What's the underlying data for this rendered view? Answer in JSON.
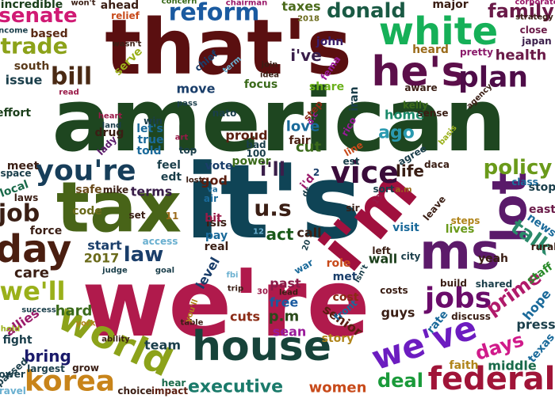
{
  "words": [
    {
      "text": "american",
      "color": "#1e4620"
    },
    {
      "text": "that's",
      "color": "#5a0f10"
    },
    {
      "text": "we're",
      "color": "#b01a4c"
    },
    {
      "text": "it's",
      "color": "#0f4456"
    },
    {
      "text": "house",
      "color": "#17433a"
    },
    {
      "text": "tax",
      "color": "#486418"
    },
    {
      "text": "i'm",
      "color": "#a0103e"
    },
    {
      "text": "white",
      "color": "#16b058"
    },
    {
      "text": "he's",
      "color": "#5c0f4a"
    },
    {
      "text": "ms",
      "color": "#5c1a6a"
    },
    {
      "text": "lot",
      "color": "#5a1a6a"
    },
    {
      "text": "world",
      "color": "#8ca21a"
    },
    {
      "text": "korea",
      "color": "#c8841a"
    },
    {
      "text": "federal",
      "color": "#a01438"
    },
    {
      "text": "we've",
      "color": "#6c1cc0"
    },
    {
      "text": "day",
      "color": "#4a1e10"
    },
    {
      "text": "you're",
      "color": "#173e5a"
    },
    {
      "text": "vice",
      "color": "#3a0c3a"
    },
    {
      "text": "plan",
      "color": "#4e0c48"
    },
    {
      "text": "reform",
      "color": "#1a5aa0"
    },
    {
      "text": "donald",
      "color": "#1a5a44"
    },
    {
      "text": "jobs",
      "color": "#6a0c6a"
    },
    {
      "text": "senate",
      "color": "#d01a74"
    },
    {
      "text": "family",
      "color": "#6a1a48"
    },
    {
      "text": "trade",
      "color": "#8ca21a"
    },
    {
      "text": "bill",
      "color": "#4a2a14"
    },
    {
      "text": "job",
      "color": "#3a1e14"
    },
    {
      "text": "law",
      "color": "#1a3e6a"
    },
    {
      "text": "policy",
      "color": "#6a9a1a"
    },
    {
      "text": "talk",
      "color": "#2a8a6a"
    },
    {
      "text": "prime",
      "color": "#b01a6a"
    },
    {
      "text": "executive",
      "color": "#1a7a6a"
    },
    {
      "text": "deal",
      "color": "#1a9a3a"
    },
    {
      "text": "women",
      "color": "#c84a1a"
    },
    {
      "text": "health",
      "color": "#6a1a48"
    },
    {
      "text": "u.s",
      "color": "#3a1e14"
    },
    {
      "text": "we'll",
      "color": "#9ab01a"
    },
    {
      "text": "bring",
      "color": "#1a1a6a"
    },
    {
      "text": "days",
      "color": "#d01a8a"
    },
    {
      "text": "team",
      "color": "#1a3e4a"
    },
    {
      "text": "life",
      "color": "#3a1e14"
    },
    {
      "text": "ago",
      "color": "#2a9ab0"
    },
    {
      "text": "home",
      "color": "#1a8a6a"
    },
    {
      "text": "act",
      "color": "#1a5a1a"
    },
    {
      "text": "hard",
      "color": "#3a6a1a"
    },
    {
      "text": "care",
      "color": "#3a1e14"
    },
    {
      "text": "i'll",
      "color": "#3a1e4a"
    },
    {
      "text": "i've",
      "color": "#3a1e4a"
    },
    {
      "text": "god",
      "color": "#5a1e10"
    },
    {
      "text": "terms",
      "color": "#3a1e4a"
    },
    {
      "text": "issue",
      "color": "#1a3e4a"
    },
    {
      "text": "incredible",
      "color": "#1a3e1a"
    },
    {
      "text": "based",
      "color": "#5a2a14"
    },
    {
      "text": "ahead",
      "color": "#3a1e14"
    },
    {
      "text": "taxes",
      "color": "#4a6a1a"
    },
    {
      "text": "major",
      "color": "#3a1e14"
    },
    {
      "text": "heard",
      "color": "#9a6a1a"
    },
    {
      "text": "south",
      "color": "#5a3a1a"
    },
    {
      "text": "close",
      "color": "#6a1a48"
    },
    {
      "text": "japan",
      "color": "#3a1e4a"
    },
    {
      "text": "pretty",
      "color": "#8a1a6a"
    },
    {
      "text": "move",
      "color": "#1a3e6a"
    },
    {
      "text": "focus",
      "color": "#3a6a1a"
    },
    {
      "text": "love",
      "color": "#1a6a9a"
    },
    {
      "text": "cut",
      "color": "#3a6a1a"
    },
    {
      "text": "fair",
      "color": "#4a1e10"
    },
    {
      "text": "proud",
      "color": "#5a1e10"
    },
    {
      "text": "meet",
      "color": "#3a1e14"
    },
    {
      "text": "local",
      "color": "#1a6a4a"
    },
    {
      "text": "safe",
      "color": "#6a4a1a"
    },
    {
      "text": "vote",
      "color": "#1a3e6a"
    },
    {
      "text": "2017",
      "color": "#6a6a1a"
    },
    {
      "text": "start",
      "color": "#1a3e6a"
    },
    {
      "text": "call",
      "color": "#3a1e14"
    },
    {
      "text": "isis",
      "color": "#3a1e14"
    },
    {
      "text": "pay",
      "color": "#1a6a9a"
    },
    {
      "text": "real",
      "color": "#3a1e14"
    },
    {
      "text": "level",
      "color": "#1a3e6a"
    },
    {
      "text": "past",
      "color": "#8a1a48"
    },
    {
      "text": "free",
      "color": "#1a5aa0"
    },
    {
      "text": "p.m",
      "color": "#2a4a1a"
    },
    {
      "text": "sean",
      "color": "#9a1a9a"
    },
    {
      "text": "cuts",
      "color": "#8a2a14"
    },
    {
      "text": "cost",
      "color": "#8a2a14"
    },
    {
      "text": "met",
      "color": "#1a3e6a"
    },
    {
      "text": "visit",
      "color": "#1a6a9a"
    },
    {
      "text": "wall",
      "color": "#1a3e1a"
    },
    {
      "text": "guys",
      "color": "#3a1e14"
    },
    {
      "text": "senior",
      "color": "#5a1e10"
    },
    {
      "text": "rate",
      "color": "#1a6a9a"
    },
    {
      "text": "hope",
      "color": "#1a6a9a"
    },
    {
      "text": "press",
      "color": "#1a3e4a"
    },
    {
      "text": "middle",
      "color": "#1a6a4a"
    },
    {
      "text": "news",
      "color": "#1a6a9a"
    },
    {
      "text": "lives",
      "color": "#6a9a1a"
    },
    {
      "text": "yeah",
      "color": "#3a1e14"
    },
    {
      "text": "build",
      "color": "#3a1e14"
    },
    {
      "text": "staff",
      "color": "#2a8a2a"
    },
    {
      "text": "fight",
      "color": "#1a3e4a"
    },
    {
      "text": "allies",
      "color": "#9a1a6a"
    },
    {
      "text": "force",
      "color": "#3a1e14"
    },
    {
      "text": "code",
      "color": "#6a6a1a"
    },
    {
      "text": "drug",
      "color": "#3a1e14"
    },
    {
      "text": "told",
      "color": "#1a6a9a"
    },
    {
      "text": "true",
      "color": "#1a6a9a"
    },
    {
      "text": "role",
      "color": "#c84a1a"
    },
    {
      "text": "story",
      "color": "#b0841a"
    },
    {
      "text": "faith",
      "color": "#b0841a"
    },
    {
      "text": "east",
      "color": "#6a1a48"
    },
    {
      "text": "stop",
      "color": "#1a3e4a"
    },
    {
      "text": "texas",
      "color": "#1a6a9a"
    },
    {
      "text": "share",
      "color": "#6ab01a"
    },
    {
      "text": "iran",
      "color": "#1a3e4a"
    },
    {
      "text": "john",
      "color": "#3a1e6a"
    },
    {
      "text": "serve",
      "color": "#9ab01a"
    },
    {
      "text": "fema",
      "color": "#9a1a9a"
    },
    {
      "text": "chief",
      "color": "#1a3e6a"
    },
    {
      "text": "relief",
      "color": "#c84a1a"
    },
    {
      "text": "step",
      "color": "#8a2a14"
    },
    {
      "text": "travel",
      "color": "#6ab0d0"
    },
    {
      "text": "grow",
      "color": "#3a1e14"
    },
    {
      "text": "largest",
      "color": "#1a3e4a"
    },
    {
      "text": "lower",
      "color": "#1a3e4a"
    },
    {
      "text": "passed",
      "color": "#1a3e4a"
    },
    {
      "text": "choice",
      "color": "#3a1e14"
    },
    {
      "text": "hear",
      "color": "#1a6a4a"
    },
    {
      "text": "impact",
      "color": "#5a1e10"
    },
    {
      "text": "costs",
      "color": "#3a1e14"
    },
    {
      "text": "discuss",
      "color": "#3a1e14"
    },
    {
      "text": "front",
      "color": "#1a6a9a"
    },
    {
      "text": "shared",
      "color": "#1a3e4a"
    },
    {
      "text": "leave",
      "color": "#3a1e14"
    },
    {
      "text": "sort",
      "color": "#1a3e4a"
    },
    {
      "text": "sir",
      "color": "#3a1e14"
    },
    {
      "text": "city",
      "color": "#1a3e4a"
    },
    {
      "text": "left",
      "color": "#3a1e14"
    },
    {
      "text": "steps",
      "color": "#b0841a"
    },
    {
      "text": "class",
      "color": "#1a6a9a"
    },
    {
      "text": "rural",
      "color": "#3a1e14"
    },
    {
      "text": "effort",
      "color": "#1a3e1a"
    },
    {
      "text": "sense",
      "color": "#3a1e14"
    },
    {
      "text": "aware",
      "color": "#3a1e14"
    },
    {
      "text": "kelly",
      "color": "#3a6a1a"
    },
    {
      "text": "agree",
      "color": "#1a3e4a"
    },
    {
      "text": "daca",
      "color": "#3a1e14"
    },
    {
      "text": "rico",
      "color": "#9a1a9a"
    },
    {
      "text": "line",
      "color": "#c84a1a"
    },
    {
      "text": "est",
      "color": "#1a3e4a"
    },
    {
      "text": "mike",
      "color": "#3a1e14"
    },
    {
      "text": "set",
      "color": "#3a1e14"
    },
    {
      "text": "laws",
      "color": "#3a1e14"
    },
    {
      "text": "space",
      "color": "#1a3e4a"
    },
    {
      "text": "feel",
      "color": "#1a3e4a"
    },
    {
      "text": "edt",
      "color": "#1a3e4a"
    },
    {
      "text": "lost",
      "color": "#3a1e14"
    },
    {
      "text": "bit",
      "color": "#9a1a48"
    },
    {
      "text": "access",
      "color": "#6ab0d0"
    },
    {
      "text": "power",
      "color": "#3a6a1a"
    },
    {
      "text": "bad",
      "color": "#1a3e4a"
    },
    {
      "text": "100",
      "color": "#1a3e4a"
    },
    {
      "text": "art",
      "color": "#9a1a48"
    },
    {
      "text": "top",
      "color": "#1a3e4a"
    },
    {
      "text": "let's",
      "color": "#1a6a9a"
    },
    {
      "text": "win",
      "color": "#1a3e4a"
    },
    {
      "text": "heart",
      "color": "#9a1a48"
    },
    {
      "text": "land",
      "color": "#1a3e4a"
    },
    {
      "text": "lady",
      "color": "#5a1a6a"
    },
    {
      "text": "nato",
      "color": "#1a3e4a"
    },
    {
      "text": "pass",
      "color": "#1a3e4a"
    },
    {
      "text": "idea",
      "color": "#3a1e14"
    },
    {
      "text": "join",
      "color": "#3a1e14"
    },
    {
      "text": "term",
      "color": "#6ab0d0"
    },
    {
      "text": "wasn't",
      "color": "#3a1e14"
    },
    {
      "text": "won't",
      "color": "#3a1e14"
    },
    {
      "text": "concern",
      "color": "#3a6a1a"
    },
    {
      "text": "chairman",
      "color": "#9a1a6a"
    },
    {
      "text": "2018",
      "color": "#6a6a1a"
    },
    {
      "text": "income",
      "color": "#1a3e4a"
    },
    {
      "text": "success",
      "color": "#1a3e4a"
    },
    {
      "text": "read",
      "color": "#9a1a48"
    },
    {
      "text": "corporate",
      "color": "#9a1a6a"
    },
    {
      "text": "strategy",
      "color": "#3a1e14"
    },
    {
      "text": "agency",
      "color": "#3a1e14"
    },
    {
      "text": "basis",
      "color": "#9ab01a"
    },
    {
      "text": "hold",
      "color": "#9ab01a"
    },
    {
      "text": "york",
      "color": "#b0841a"
    },
    {
      "text": "ability",
      "color": "#3a1e14"
    },
    {
      "text": "table",
      "color": "#3a1e14"
    },
    {
      "text": "you'll",
      "color": "#b0841a"
    },
    {
      "text": "trip",
      "color": "#3a1e14"
    },
    {
      "text": "judge",
      "color": "#1a3e4a"
    },
    {
      "text": "goal",
      "color": "#1a3e4a"
    },
    {
      "text": "fbi",
      "color": "#6ab0d0"
    },
    {
      "text": "lead",
      "color": "#3a1e14"
    },
    {
      "text": "war",
      "color": "#1a6a9a"
    },
    {
      "text": "isn't",
      "color": "#1a3e4a"
    },
    {
      "text": "air",
      "color": "#1a6a9a"
    },
    {
      "text": "va",
      "color": "#1a6a9a"
    },
    {
      "text": "2",
      "color": "#1a3e6a"
    },
    {
      "text": "dr",
      "color": "#1a3e4a"
    },
    {
      "text": "i'd",
      "color": "#9a1a6a"
    },
    {
      "text": "11",
      "color": "#9a6a1a"
    },
    {
      "text": "12",
      "color": "#6ab0d0"
    },
    {
      "text": "13",
      "color": "#9a1a48"
    },
    {
      "text": "20",
      "color": "#1a3e4a"
    },
    {
      "text": "30",
      "color": "#9a1a48"
    },
    {
      "text": "a.m",
      "color": "#9a6a1a"
    },
    {
      "text": "d.c",
      "color": "#9a1a9a"
    }
  ]
}
